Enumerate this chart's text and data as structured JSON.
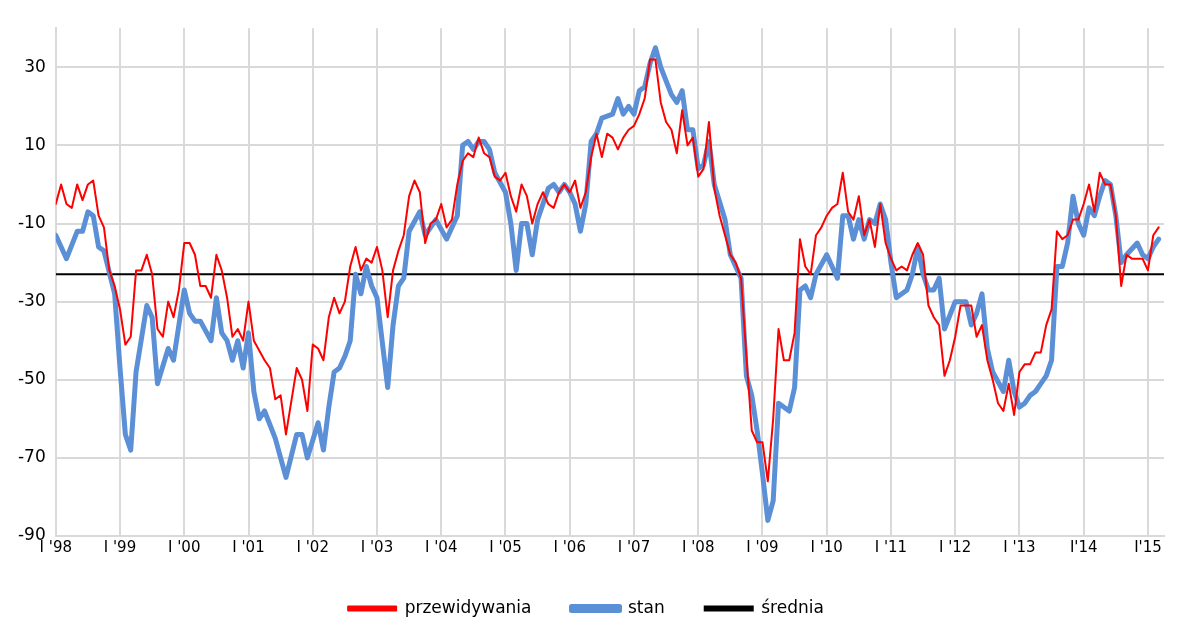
{
  "chart_data": {
    "type": "line",
    "xlim": [
      "1998-01",
      "2015-04"
    ],
    "xticks": [
      {
        "value": "1998-01",
        "label": "I '98"
      },
      {
        "value": "1999-01",
        "label": "I '99"
      },
      {
        "value": "2000-01",
        "label": "I '00"
      },
      {
        "value": "2001-01",
        "label": "I '01"
      },
      {
        "value": "2002-01",
        "label": "I '02"
      },
      {
        "value": "2003-01",
        "label": "I '03"
      },
      {
        "value": "2004-01",
        "label": "I '04"
      },
      {
        "value": "2005-01",
        "label": "I '05"
      },
      {
        "value": "2006-01",
        "label": "I '06"
      },
      {
        "value": "2007-01",
        "label": "I '07"
      },
      {
        "value": "2008-01",
        "label": "I '08"
      },
      {
        "value": "2009-01",
        "label": "I '09"
      },
      {
        "value": "2010-01",
        "label": "I '10"
      },
      {
        "value": "2011-01",
        "label": "I '11"
      },
      {
        "value": "2012-01",
        "label": "I '12"
      },
      {
        "value": "2013-01",
        "label": "I '13"
      },
      {
        "value": "2014-01",
        "label": "I'14"
      },
      {
        "value": "2015-01",
        "label": "I'15"
      }
    ],
    "ylim": [
      -90,
      40
    ],
    "yticks": [
      -90,
      -70,
      -50,
      -30,
      -10,
      10,
      30
    ],
    "grid": true,
    "legend": "bottom",
    "marker": "none",
    "line_style": "solid",
    "series": [
      {
        "name": "stan",
        "color": "#5b8fd6",
        "x": [
          "1998-01",
          "1998-03",
          "1998-05",
          "1998-06",
          "1998-07",
          "1998-08",
          "1998-09",
          "1998-10",
          "1998-12",
          "1999-01",
          "1999-02",
          "1999-03",
          "1999-04",
          "1999-06",
          "1999-07",
          "1999-08",
          "1999-10",
          "1999-11",
          "2000-01",
          "2000-02",
          "2000-03",
          "2000-04",
          "2000-06",
          "2000-07",
          "2000-08",
          "2000-09",
          "2000-10",
          "2000-11",
          "2000-12",
          "2001-01",
          "2001-02",
          "2001-03",
          "2001-04",
          "2001-06",
          "2001-08",
          "2001-10",
          "2001-11",
          "2001-12",
          "2002-02",
          "2002-03",
          "2002-04",
          "2002-05",
          "2002-06",
          "2002-07",
          "2002-08",
          "2002-09",
          "2002-10",
          "2002-11",
          "2002-12",
          "2003-01",
          "2003-03",
          "2003-04",
          "2003-05",
          "2003-06",
          "2003-07",
          "2003-09",
          "2003-10",
          "2003-12",
          "2004-02",
          "2004-04",
          "2004-05",
          "2004-06",
          "2004-07",
          "2004-08",
          "2004-09",
          "2004-10",
          "2004-11",
          "2005-01",
          "2005-02",
          "2005-03",
          "2005-04",
          "2005-05",
          "2005-06",
          "2005-07",
          "2005-09",
          "2005-10",
          "2005-11",
          "2005-12",
          "2006-01",
          "2006-02",
          "2006-03",
          "2006-04",
          "2006-05",
          "2006-06",
          "2006-07",
          "2006-09",
          "2006-10",
          "2006-11",
          "2006-12",
          "2007-01",
          "2007-02",
          "2007-03",
          "2007-04",
          "2007-05",
          "2007-06",
          "2007-08",
          "2007-09",
          "2007-10",
          "2007-11",
          "2007-12",
          "2008-01",
          "2008-02",
          "2008-03",
          "2008-04",
          "2008-06",
          "2008-07",
          "2008-09",
          "2008-10",
          "2008-11",
          "2008-12",
          "2009-01",
          "2009-02",
          "2009-03",
          "2009-04",
          "2009-06",
          "2009-07",
          "2009-08",
          "2009-09",
          "2009-10",
          "2009-11",
          "2010-01",
          "2010-03",
          "2010-04",
          "2010-05",
          "2010-06",
          "2010-07",
          "2010-08",
          "2010-09",
          "2010-10",
          "2010-11",
          "2010-12",
          "2011-01",
          "2011-02",
          "2011-04",
          "2011-05",
          "2011-06",
          "2011-07",
          "2011-08",
          "2011-09",
          "2011-10",
          "2011-11",
          "2012-01",
          "2012-03",
          "2012-04",
          "2012-05",
          "2012-06",
          "2012-07",
          "2012-08",
          "2012-10",
          "2012-11",
          "2012-12",
          "2013-01",
          "2013-02",
          "2013-03",
          "2013-04",
          "2013-05",
          "2013-06",
          "2013-07",
          "2013-08",
          "2013-09",
          "2013-10",
          "2013-11",
          "2013-12",
          "2014-01",
          "2014-02",
          "2014-03",
          "2014-04",
          "2014-05",
          "2014-06",
          "2014-07",
          "2014-08",
          "2014-09",
          "2014-11",
          "2014-12",
          "2015-01",
          "2015-02",
          "2015-03"
        ],
        "values": [
          -13,
          -19,
          -12,
          -12,
          -7,
          -8,
          -16,
          -17,
          -28,
          -47,
          -64,
          -68,
          -48,
          -31,
          -34,
          -51,
          -42,
          -45,
          -27,
          -33,
          -35,
          -35,
          -40,
          -29,
          -38,
          -40,
          -45,
          -40,
          -47,
          -38,
          -53,
          -60,
          -58,
          -65,
          -75,
          -64,
          -64,
          -70,
          -61,
          -68,
          -57,
          -48,
          -47,
          -44,
          -40,
          -23,
          -28,
          -21,
          -26,
          -29,
          -52,
          -36,
          -26,
          -24,
          -12,
          -7,
          -13,
          -9,
          -14,
          -8,
          10,
          11,
          9,
          11,
          11,
          9,
          3,
          -2,
          -10,
          -22,
          -10,
          -10,
          -18,
          -9,
          -1,
          0,
          -2,
          0,
          -2,
          -5,
          -12,
          -5,
          11,
          13,
          17,
          18,
          22,
          18,
          20,
          18,
          24,
          25,
          31,
          35,
          30,
          23,
          21,
          24,
          14,
          14,
          4,
          5,
          11,
          0,
          -9,
          -18,
          -24,
          -49,
          -54,
          -63,
          -74,
          -86,
          -81,
          -56,
          -58,
          -52,
          -27,
          -26,
          -29,
          -23,
          -18,
          -24,
          -8,
          -8,
          -14,
          -9,
          -14,
          -9,
          -10,
          -5,
          -9,
          -20,
          -29,
          -27,
          -23,
          -16,
          -23,
          -27,
          -27,
          -24,
          -37,
          -30,
          -30,
          -36,
          -33,
          -28,
          -42,
          -48,
          -53,
          -45,
          -53,
          -57,
          -56,
          -54,
          -53,
          -51,
          -49,
          -45,
          -21,
          -21,
          -15,
          -3,
          -10,
          -13,
          -6,
          -8,
          -3,
          1,
          0,
          -8,
          -20,
          -18,
          -15,
          -18,
          -19,
          -16,
          -14
        ]
      },
      {
        "name": "przewidywania",
        "color": "#ff0000",
        "x": [
          "1998-01",
          "1998-02",
          "1998-03",
          "1998-04",
          "1998-05",
          "1998-06",
          "1998-07",
          "1998-08",
          "1998-09",
          "1998-10",
          "1998-11",
          "1998-12",
          "1999-01",
          "1999-02",
          "1999-03",
          "1999-04",
          "1999-05",
          "1999-06",
          "1999-07",
          "1999-08",
          "1999-09",
          "1999-10",
          "1999-11",
          "1999-12",
          "2000-01",
          "2000-02",
          "2000-03",
          "2000-04",
          "2000-05",
          "2000-06",
          "2000-07",
          "2000-08",
          "2000-09",
          "2000-10",
          "2000-11",
          "2000-12",
          "2001-01",
          "2001-02",
          "2001-04",
          "2001-05",
          "2001-06",
          "2001-07",
          "2001-08",
          "2001-10",
          "2001-11",
          "2001-12",
          "2002-01",
          "2002-02",
          "2002-03",
          "2002-04",
          "2002-05",
          "2002-06",
          "2002-07",
          "2002-08",
          "2002-09",
          "2002-10",
          "2002-11",
          "2002-12",
          "2003-01",
          "2003-02",
          "2003-03",
          "2003-04",
          "2003-05",
          "2003-06",
          "2003-07",
          "2003-08",
          "2003-09",
          "2003-10",
          "2003-11",
          "2003-12",
          "2004-01",
          "2004-02",
          "2004-03",
          "2004-04",
          "2004-05",
          "2004-06",
          "2004-07",
          "2004-08",
          "2004-09",
          "2004-10",
          "2004-11",
          "2004-12",
          "2005-01",
          "2005-02",
          "2005-03",
          "2005-04",
          "2005-05",
          "2005-06",
          "2005-07",
          "2005-08",
          "2005-09",
          "2005-10",
          "2005-11",
          "2005-12",
          "2006-01",
          "2006-02",
          "2006-03",
          "2006-04",
          "2006-05",
          "2006-06",
          "2006-07",
          "2006-08",
          "2006-09",
          "2006-10",
          "2006-11",
          "2006-12",
          "2007-01",
          "2007-02",
          "2007-03",
          "2007-04",
          "2007-05",
          "2007-06",
          "2007-07",
          "2007-08",
          "2007-09",
          "2007-10",
          "2007-11",
          "2007-12",
          "2008-01",
          "2008-02",
          "2008-03",
          "2008-04",
          "2008-05",
          "2008-07",
          "2008-08",
          "2008-09",
          "2008-10",
          "2008-11",
          "2008-12",
          "2009-01",
          "2009-02",
          "2009-03",
          "2009-04",
          "2009-05",
          "2009-06",
          "2009-07",
          "2009-08",
          "2009-09",
          "2009-10",
          "2009-11",
          "2009-12",
          "2010-01",
          "2010-02",
          "2010-03",
          "2010-04",
          "2010-05",
          "2010-06",
          "2010-07",
          "2010-08",
          "2010-09",
          "2010-10",
          "2010-11",
          "2010-12",
          "2011-01",
          "2011-02",
          "2011-03",
          "2011-04",
          "2011-05",
          "2011-06",
          "2011-07",
          "2011-08",
          "2011-09",
          "2011-10",
          "2011-11",
          "2011-12",
          "2012-01",
          "2012-02",
          "2012-03",
          "2012-04",
          "2012-05",
          "2012-06",
          "2012-07",
          "2012-08",
          "2012-09",
          "2012-10",
          "2012-11",
          "2012-12",
          "2013-01",
          "2013-02",
          "2013-03",
          "2013-04",
          "2013-05",
          "2013-06",
          "2013-07",
          "2013-08",
          "2013-09",
          "2013-10",
          "2013-11",
          "2013-12",
          "2014-01",
          "2014-02",
          "2014-03",
          "2014-04",
          "2014-05",
          "2014-06",
          "2014-07",
          "2014-08",
          "2014-09",
          "2014-10",
          "2014-11",
          "2014-12",
          "2015-01",
          "2015-02",
          "2015-03"
        ],
        "values": [
          -5,
          0,
          -5,
          -6,
          0,
          -4,
          0,
          1,
          -8,
          -11,
          -22,
          -26,
          -32,
          -41,
          -39,
          -22,
          -22,
          -18,
          -23,
          -37,
          -39,
          -30,
          -34,
          -27,
          -15,
          -15,
          -18,
          -26,
          -26,
          -29,
          -18,
          -22,
          -29,
          -39,
          -37,
          -40,
          -30,
          -40,
          -45,
          -47,
          -55,
          -54,
          -64,
          -47,
          -50,
          -58,
          -41,
          -42,
          -45,
          -34,
          -29,
          -33,
          -30,
          -21,
          -16,
          -22,
          -19,
          -20,
          -16,
          -22,
          -34,
          -22,
          -17,
          -13,
          -3,
          1,
          -2,
          -15,
          -10,
          -9,
          -5,
          -11,
          -9,
          0,
          6,
          8,
          7,
          12,
          8,
          7,
          2,
          1,
          3,
          -3,
          -7,
          0,
          -3,
          -10,
          -5,
          -2,
          -5,
          -6,
          -2,
          0,
          -2,
          1,
          -6,
          -2,
          7,
          13,
          7,
          13,
          12,
          9,
          12,
          14,
          15,
          18,
          22,
          32,
          32,
          21,
          16,
          14,
          8,
          19,
          10,
          12,
          2,
          4,
          16,
          -1,
          -8,
          -18,
          -20,
          -24,
          -44,
          -63,
          -66,
          -66,
          -76,
          -60,
          -37,
          -45,
          -45,
          -38,
          -14,
          -21,
          -23,
          -13,
          -11,
          -8,
          -6,
          -5,
          3,
          -7,
          -9,
          -3,
          -13,
          -9,
          -16,
          -5,
          -15,
          -19,
          -22,
          -21,
          -22,
          -18,
          -15,
          -18,
          -31,
          -34,
          -36,
          -49,
          -45,
          -39,
          -31,
          -31,
          -31,
          -39,
          -36,
          -45,
          -50,
          -56,
          -58,
          -51,
          -59,
          -48,
          -46,
          -46,
          -43,
          -43,
          -36,
          -32,
          -12,
          -14,
          -13,
          -9,
          -9,
          -5,
          0,
          -7,
          3,
          0,
          0,
          -8,
          -26,
          -18,
          -19,
          -19,
          -19,
          -22,
          -13,
          -11
        ]
      }
    ],
    "ref_lines": [
      {
        "axis": "y",
        "value": -23,
        "label": "średnia",
        "color": "#000000"
      }
    ]
  }
}
